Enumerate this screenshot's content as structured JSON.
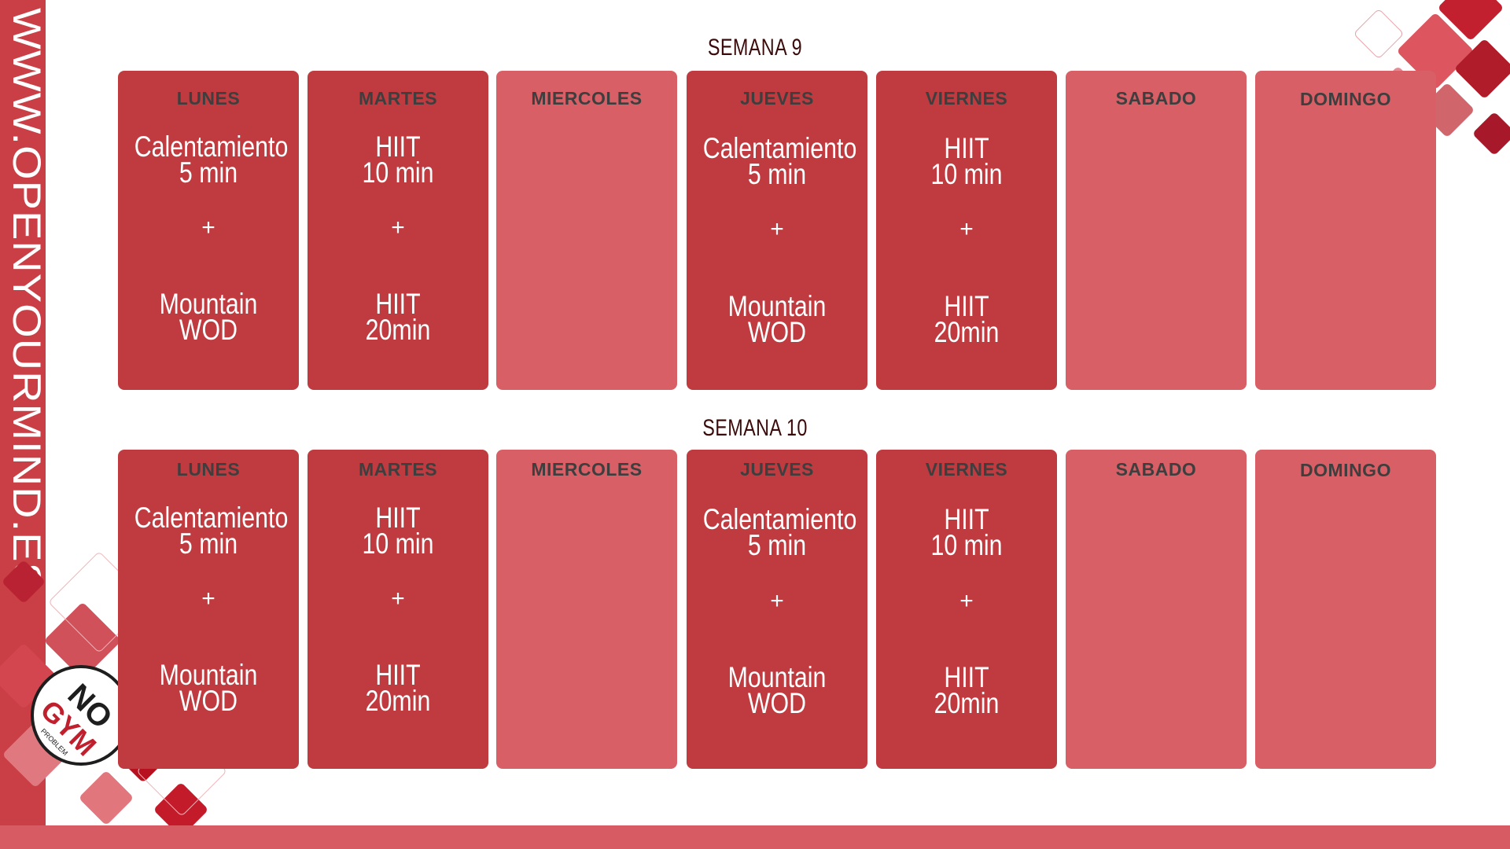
{
  "site_url": "WWW.OPENYOURMIND.ES",
  "colors": {
    "active_card": "#bf3b40",
    "rest_card": "#d85f65",
    "sidebar": "#c93f45",
    "title": "#3b0b0b"
  },
  "logo": {
    "text_main": "GYM",
    "text_no": "NO",
    "text_small": "PROBLEM"
  },
  "weeks": [
    {
      "title": "SEMANA 9",
      "days": [
        {
          "name": "LUNES",
          "type": "active",
          "line1": "Calentamiento",
          "line2": "5 min",
          "plus": "+",
          "line3": "Mountain",
          "line4": "WOD"
        },
        {
          "name": "MARTES",
          "type": "active",
          "line1": "HIIT",
          "line2": "10 min",
          "plus": "+",
          "line3": "HIIT",
          "line4": "20min"
        },
        {
          "name": "MIERCOLES",
          "type": "rest"
        },
        {
          "name": "JUEVES",
          "type": "active",
          "line1": "Calentamiento",
          "line2": "5 min",
          "plus": "+",
          "line3": "Mountain",
          "line4": "WOD"
        },
        {
          "name": "VIERNES",
          "type": "active",
          "line1": "HIIT",
          "line2": "10 min",
          "plus": "+",
          "line3": "HIIT",
          "line4": "20min"
        },
        {
          "name": "SABADO",
          "type": "rest"
        },
        {
          "name": "DOMINGO",
          "type": "rest"
        }
      ]
    },
    {
      "title": "SEMANA 10",
      "days": [
        {
          "name": "LUNES",
          "type": "active",
          "line1": "Calentamiento",
          "line2": "5 min",
          "plus": "+",
          "line3": "Mountain",
          "line4": "WOD"
        },
        {
          "name": "MARTES",
          "type": "active",
          "line1": "HIIT",
          "line2": "10 min",
          "plus": "+",
          "line3": "HIIT",
          "line4": "20min"
        },
        {
          "name": "MIERCOLES",
          "type": "rest"
        },
        {
          "name": "JUEVES",
          "type": "active",
          "line1": "Calentamiento",
          "line2": "5 min",
          "plus": "+",
          "line3": "Mountain",
          "line4": "WOD"
        },
        {
          "name": "VIERNES",
          "type": "active",
          "line1": "HIIT",
          "line2": "10 min",
          "plus": "+",
          "line3": "HIIT",
          "line4": "20min"
        },
        {
          "name": "SABADO",
          "type": "rest"
        },
        {
          "name": "DOMINGO",
          "type": "rest"
        }
      ]
    }
  ]
}
